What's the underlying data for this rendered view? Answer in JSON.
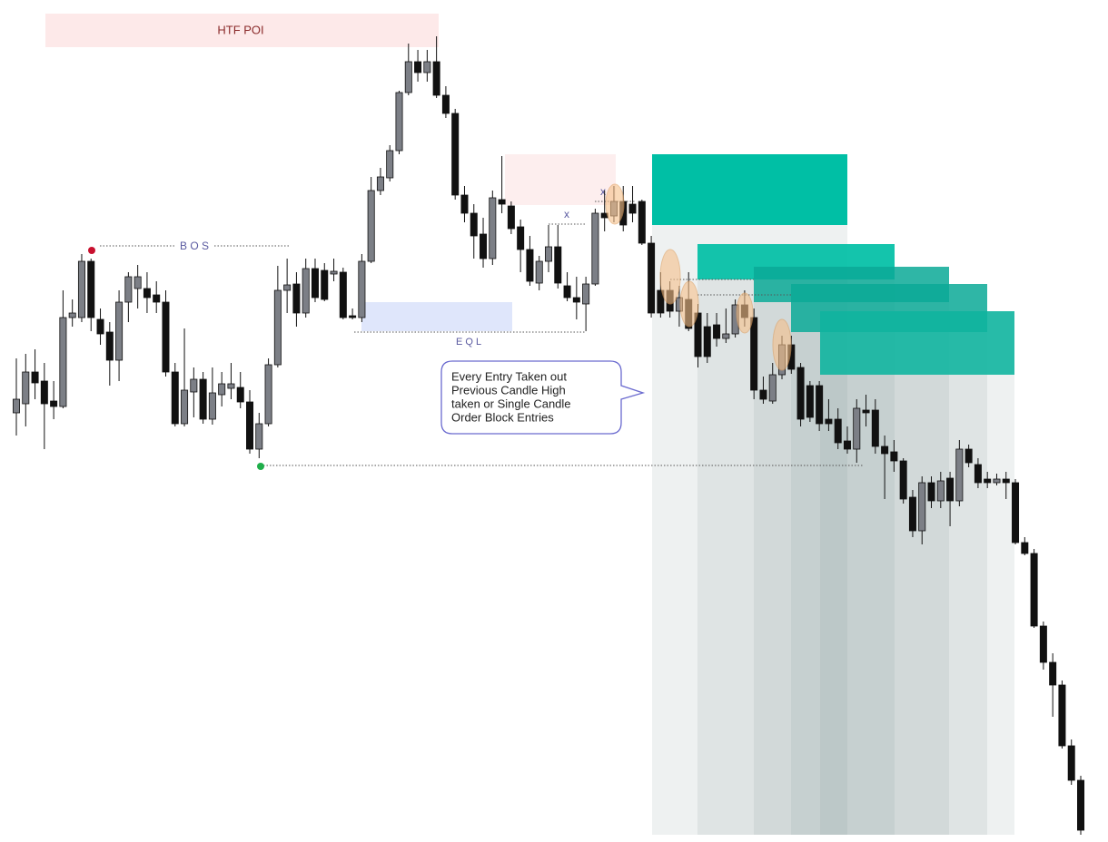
{
  "chart_data": {
    "type": "candlestick",
    "categories": [
      null,
      null,
      null,
      null,
      null,
      null,
      null,
      null,
      null,
      null,
      null,
      null,
      null,
      null,
      null,
      null,
      null,
      null,
      null,
      null,
      null,
      null,
      null,
      null,
      null,
      null,
      null,
      null,
      null,
      null,
      null,
      null,
      null,
      null,
      null,
      null,
      null,
      null,
      null,
      null,
      null,
      null,
      null,
      null,
      null,
      null,
      null,
      null,
      null,
      null,
      null,
      null,
      null,
      null,
      null,
      null,
      null,
      null,
      null,
      null,
      null,
      null,
      null,
      null,
      null,
      null,
      null,
      null,
      null,
      null,
      null,
      null,
      null,
      null,
      null,
      null,
      null,
      null,
      null,
      null,
      null,
      null,
      null,
      null,
      null,
      null,
      null,
      null,
      null,
      null,
      null,
      null,
      null,
      null,
      null,
      null,
      null,
      null,
      null,
      null,
      null,
      null,
      null,
      null,
      null,
      null,
      null,
      null,
      null,
      null,
      null,
      null,
      null,
      null,
      null
    ],
    "open": [
      473,
      483,
      518,
      508,
      486,
      480,
      578,
      578,
      640,
      576,
      562,
      531,
      595,
      610,
      610,
      603,
      595,
      518,
      461,
      496,
      510,
      466,
      493,
      500,
      501,
      485,
      433,
      461,
      526,
      608,
      615,
      583,
      632,
      630,
      626,
      628,
      580,
      578,
      640,
      718,
      732,
      762,
      826,
      860,
      848,
      860,
      823,
      803,
      713,
      693,
      670,
      643,
      708,
      701,
      678,
      653,
      616,
      640,
      656,
      613,
      600,
      593,
      615,
      693,
      690,
      706,
      703,
      706,
      660,
      608,
      608,
      585,
      598,
      583,
      568,
      570,
      555,
      560,
      592,
      578,
      498,
      486,
      515,
      548,
      523,
      503,
      503,
      466,
      466,
      442,
      433,
      476,
      476,
      436,
      430,
      420,
      380,
      343,
      396,
      376,
      401,
      376,
      433,
      416,
      400,
      396,
      400,
      396,
      330,
      318,
      238,
      198,
      173,
      106,
      68
    ],
    "high": [
      533,
      538,
      543,
      528,
      508,
      608,
      598,
      648,
      643,
      588,
      573,
      608,
      628,
      636,
      628,
      618,
      608,
      528,
      566,
      523,
      518,
      523,
      518,
      528,
      518,
      498,
      473,
      533,
      635,
      643,
      628,
      643,
      643,
      638,
      643,
      633,
      588,
      648,
      733,
      743,
      768,
      828,
      880,
      873,
      873,
      888,
      833,
      808,
      723,
      703,
      688,
      718,
      756,
      706,
      686,
      668,
      646,
      680,
      680,
      628,
      623,
      623,
      698,
      718,
      723,
      723,
      723,
      708,
      668,
      628,
      618,
      613,
      628,
      593,
      583,
      583,
      588,
      598,
      608,
      588,
      513,
      528,
      558,
      558,
      528,
      508,
      508,
      488,
      478,
      458,
      488,
      493,
      488,
      448,
      443,
      423,
      388,
      403,
      403,
      408,
      408,
      443,
      438,
      423,
      408,
      406,
      408,
      400,
      336,
      323,
      243,
      208,
      178,
      113,
      73
    ],
    "low": [
      448,
      458,
      488,
      433,
      466,
      478,
      568,
      573,
      563,
      548,
      503,
      508,
      573,
      588,
      583,
      583,
      513,
      458,
      458,
      468,
      461,
      460,
      480,
      488,
      478,
      428,
      423,
      458,
      523,
      583,
      568,
      578,
      595,
      596,
      618,
      576,
      576,
      573,
      638,
      713,
      728,
      758,
      823,
      838,
      838,
      820,
      798,
      708,
      683,
      643,
      633,
      636,
      693,
      670,
      628,
      613,
      608,
      628,
      610,
      596,
      576,
      563,
      613,
      673,
      683,
      673,
      683,
      658,
      578,
      578,
      578,
      568,
      563,
      523,
      528,
      546,
      550,
      556,
      568,
      488,
      483,
      483,
      510,
      516,
      458,
      463,
      453,
      453,
      433,
      428,
      418,
      458,
      428,
      378,
      408,
      373,
      336,
      328,
      368,
      368,
      348,
      370,
      413,
      390,
      390,
      393,
      378,
      328,
      316,
      236,
      190,
      138,
      103,
      63,
      8
    ],
    "close": [
      488,
      518,
      506,
      483,
      480,
      578,
      583,
      640,
      578,
      560,
      531,
      595,
      623,
      623,
      600,
      595,
      518,
      461,
      498,
      510,
      466,
      495,
      505,
      505,
      485,
      433,
      461,
      526,
      608,
      614,
      583,
      632,
      600,
      598,
      629,
      578,
      578,
      640,
      718,
      733,
      762,
      826,
      860,
      848,
      860,
      823,
      803,
      713,
      693,
      668,
      643,
      710,
      703,
      676,
      653,
      618,
      640,
      656,
      616,
      600,
      595,
      615,
      693,
      688,
      706,
      680,
      693,
      660,
      583,
      583,
      585,
      600,
      566,
      535,
      535,
      555,
      560,
      592,
      578,
      498,
      488,
      515,
      548,
      521,
      466,
      468,
      461,
      461,
      440,
      433,
      478,
      473,
      436,
      428,
      420,
      378,
      343,
      396,
      376,
      398,
      376,
      433,
      418,
      396,
      396,
      400,
      396,
      330,
      318,
      238,
      198,
      173,
      106,
      68,
      13
    ],
    "up_color": "#7c7f86",
    "down_color": "#111111",
    "ylim": [
      0,
      928
    ],
    "annotations": {
      "htf_poi": "HTF  POI",
      "bos": "B O S",
      "eql": "E Q L",
      "x1": "x",
      "x2": "x",
      "note": [
        "Every Entry Taken out",
        "Previous Candle High",
        "taken  or Single Candle",
        "Order Block Entries"
      ]
    }
  }
}
